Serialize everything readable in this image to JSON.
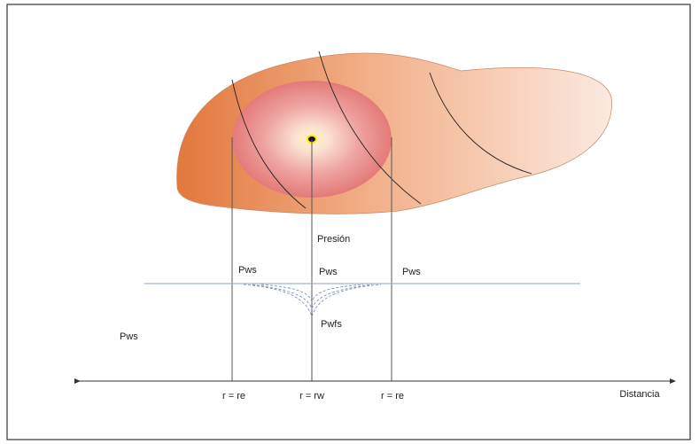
{
  "labels": {
    "pressure": "Presión",
    "pws_outer_left": "Pws",
    "pws_left": "Pws",
    "pws_center": "Pws",
    "pws_right": "Pws",
    "pwfs": "Pwfs",
    "r_re_left": "r = re",
    "r_rw": "r = rw",
    "r_re_right": "r = re",
    "distance": "Distancia"
  }
}
